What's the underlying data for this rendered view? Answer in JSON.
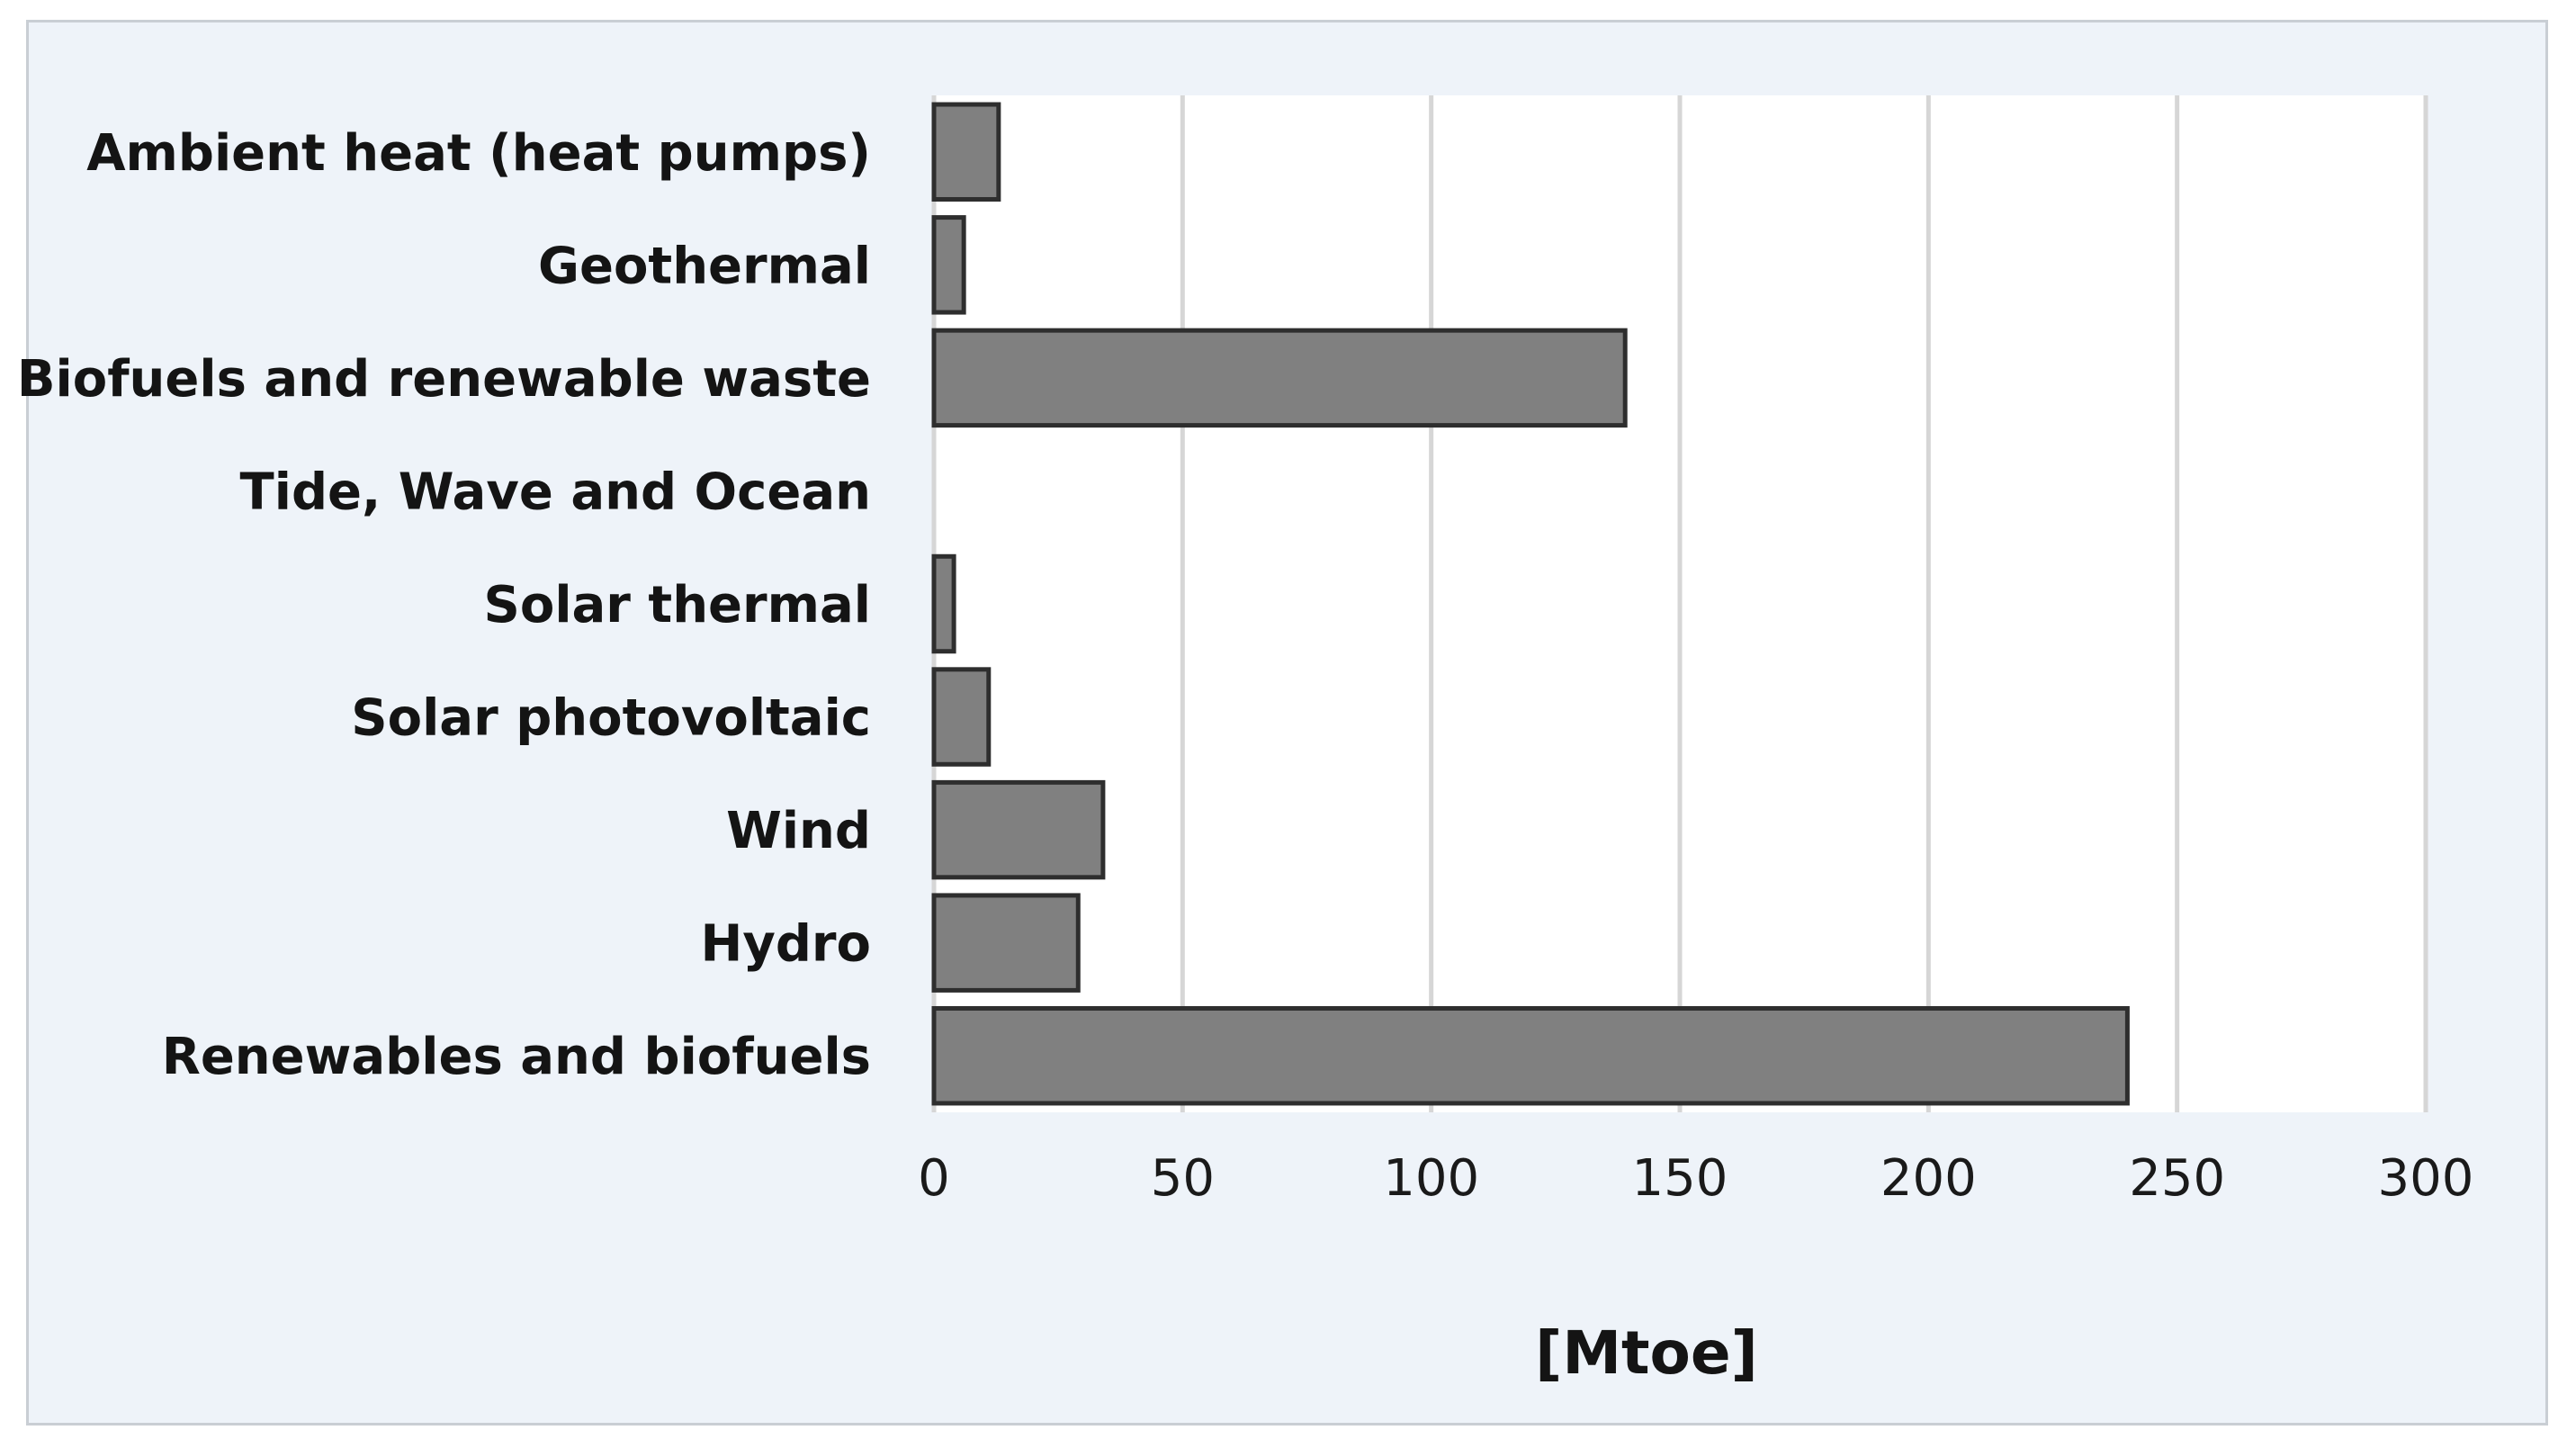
{
  "chart_data": {
    "type": "bar",
    "orientation": "horizontal",
    "categories": [
      "Ambient heat (heat pumps)",
      "Geothermal",
      "Biofuels and renewable waste",
      "Tide, Wave and Ocean",
      "Solar thermal",
      "Solar photovoltaic",
      "Wind",
      "Hydro",
      "Renewables and biofuels"
    ],
    "values": [
      13,
      6,
      139,
      0,
      4,
      11,
      34,
      29,
      240
    ],
    "title": "",
    "xlabel": "[Mtoe]",
    "ylabel": "",
    "xlim": [
      0,
      300
    ],
    "xticks": [
      "0",
      "50",
      "100",
      "150",
      "200",
      "250",
      "300"
    ],
    "tick_values": [
      0,
      50,
      100,
      150,
      200,
      250,
      300
    ],
    "grid": "vertical",
    "legend": "none",
    "colors": {
      "bar_fill": "#808080",
      "bar_stroke": "#2e2e2e",
      "frame_background": "#eef3f9",
      "plot_background": "#ffffff",
      "gridline": "#d6d6d6"
    }
  }
}
